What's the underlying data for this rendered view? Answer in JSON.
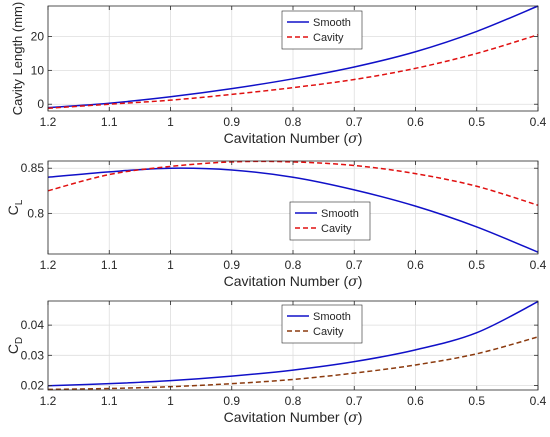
{
  "chart_data": [
    {
      "type": "line",
      "xlabel": "Cavitation Number (σ)",
      "xlabel_text": "Cavitation Number (",
      "xlabel_symbol": "σ",
      "xlabel_close": ")",
      "ylabel": "Cavity Length (mm)",
      "xlim": [
        1.2,
        0.4
      ],
      "ylim": [
        -2,
        29
      ],
      "x_reversed": true,
      "grid": true,
      "legend": "top-center",
      "xticks": [
        1.2,
        1.1,
        1,
        0.9,
        0.8,
        0.7,
        0.6,
        0.5,
        0.4
      ],
      "xtick_labels": [
        "1.2",
        "1.1",
        "1",
        "0.9",
        "0.8",
        "0.7",
        "0.6",
        "0.5",
        "0.4"
      ],
      "yticks": [
        0,
        10,
        20
      ],
      "ytick_labels": [
        "0",
        "10",
        "20"
      ],
      "x": [
        1.2,
        1.1,
        1.0,
        0.9,
        0.8,
        0.7,
        0.6,
        0.5,
        0.4
      ],
      "series": [
        {
          "name": "Smooth",
          "color": "#1010c8",
          "dash": "solid",
          "values": [
            -1,
            0.3,
            2.2,
            4.6,
            7.5,
            11,
            15.5,
            21.5,
            29
          ]
        },
        {
          "name": "Cavity",
          "color": "#e01010",
          "dash": "dashed",
          "values": [
            -1.2,
            0,
            1.2,
            2.9,
            4.9,
            7.3,
            10.6,
            15,
            20.5
          ]
        }
      ]
    },
    {
      "type": "line",
      "xlabel": "Cavitation Number (σ)",
      "xlabel_text": "Cavitation Number (",
      "xlabel_symbol": "σ",
      "xlabel_close": ")",
      "ylabel": "C_L",
      "ylabel_main": "C",
      "ylabel_sub": "L",
      "xlim": [
        1.2,
        0.4
      ],
      "ylim": [
        0.755,
        0.858
      ],
      "x_reversed": true,
      "grid": true,
      "legend": "center",
      "xticks": [
        1.2,
        1.1,
        1,
        0.9,
        0.8,
        0.7,
        0.6,
        0.5,
        0.4
      ],
      "xtick_labels": [
        "1.2",
        "1.1",
        "1",
        "0.9",
        "0.8",
        "0.7",
        "0.6",
        "0.5",
        "0.4"
      ],
      "yticks": [
        0.8,
        0.85
      ],
      "ytick_labels": [
        "0.8",
        "0.85"
      ],
      "x": [
        1.2,
        1.1,
        1.0,
        0.9,
        0.8,
        0.7,
        0.6,
        0.5,
        0.4
      ],
      "series": [
        {
          "name": "Smooth",
          "color": "#1010c8",
          "dash": "solid",
          "values": [
            0.84,
            0.846,
            0.85,
            0.848,
            0.84,
            0.826,
            0.808,
            0.785,
            0.757
          ]
        },
        {
          "name": "Cavity",
          "color": "#e01010",
          "dash": "dashed",
          "values": [
            0.825,
            0.843,
            0.852,
            0.857,
            0.857,
            0.853,
            0.844,
            0.83,
            0.809
          ]
        }
      ]
    },
    {
      "type": "line",
      "xlabel": "Cavitation Number (σ)",
      "xlabel_text": "Cavitation Number (",
      "xlabel_symbol": "σ",
      "xlabel_close": ")",
      "ylabel": "C_D",
      "ylabel_main": "C",
      "ylabel_sub": "D",
      "xlim": [
        1.2,
        0.4
      ],
      "ylim": [
        0.0185,
        0.048
      ],
      "x_reversed": true,
      "grid": true,
      "legend": "top-center",
      "xticks": [
        1.2,
        1.1,
        1,
        0.9,
        0.8,
        0.7,
        0.6,
        0.5,
        0.4
      ],
      "xtick_labels": [
        "1.2",
        "1.1",
        "1",
        "0.9",
        "0.8",
        "0.7",
        "0.6",
        "0.5",
        "0.4"
      ],
      "yticks": [
        0.02,
        0.03,
        0.04
      ],
      "ytick_labels": [
        "0.02",
        "0.03",
        "0.04"
      ],
      "x": [
        1.2,
        1.1,
        1.0,
        0.9,
        0.8,
        0.7,
        0.6,
        0.5,
        0.4
      ],
      "series": [
        {
          "name": "Smooth",
          "color": "#1010c8",
          "dash": "solid",
          "values": [
            0.0199,
            0.0206,
            0.0216,
            0.0231,
            0.0251,
            0.0279,
            0.0318,
            0.0375,
            0.0478
          ]
        },
        {
          "name": "Cavity",
          "color": "#8b3a0e",
          "dash": "dashed",
          "values": [
            0.0187,
            0.019,
            0.0196,
            0.0206,
            0.022,
            0.0241,
            0.0268,
            0.0305,
            0.0361
          ]
        }
      ]
    }
  ]
}
